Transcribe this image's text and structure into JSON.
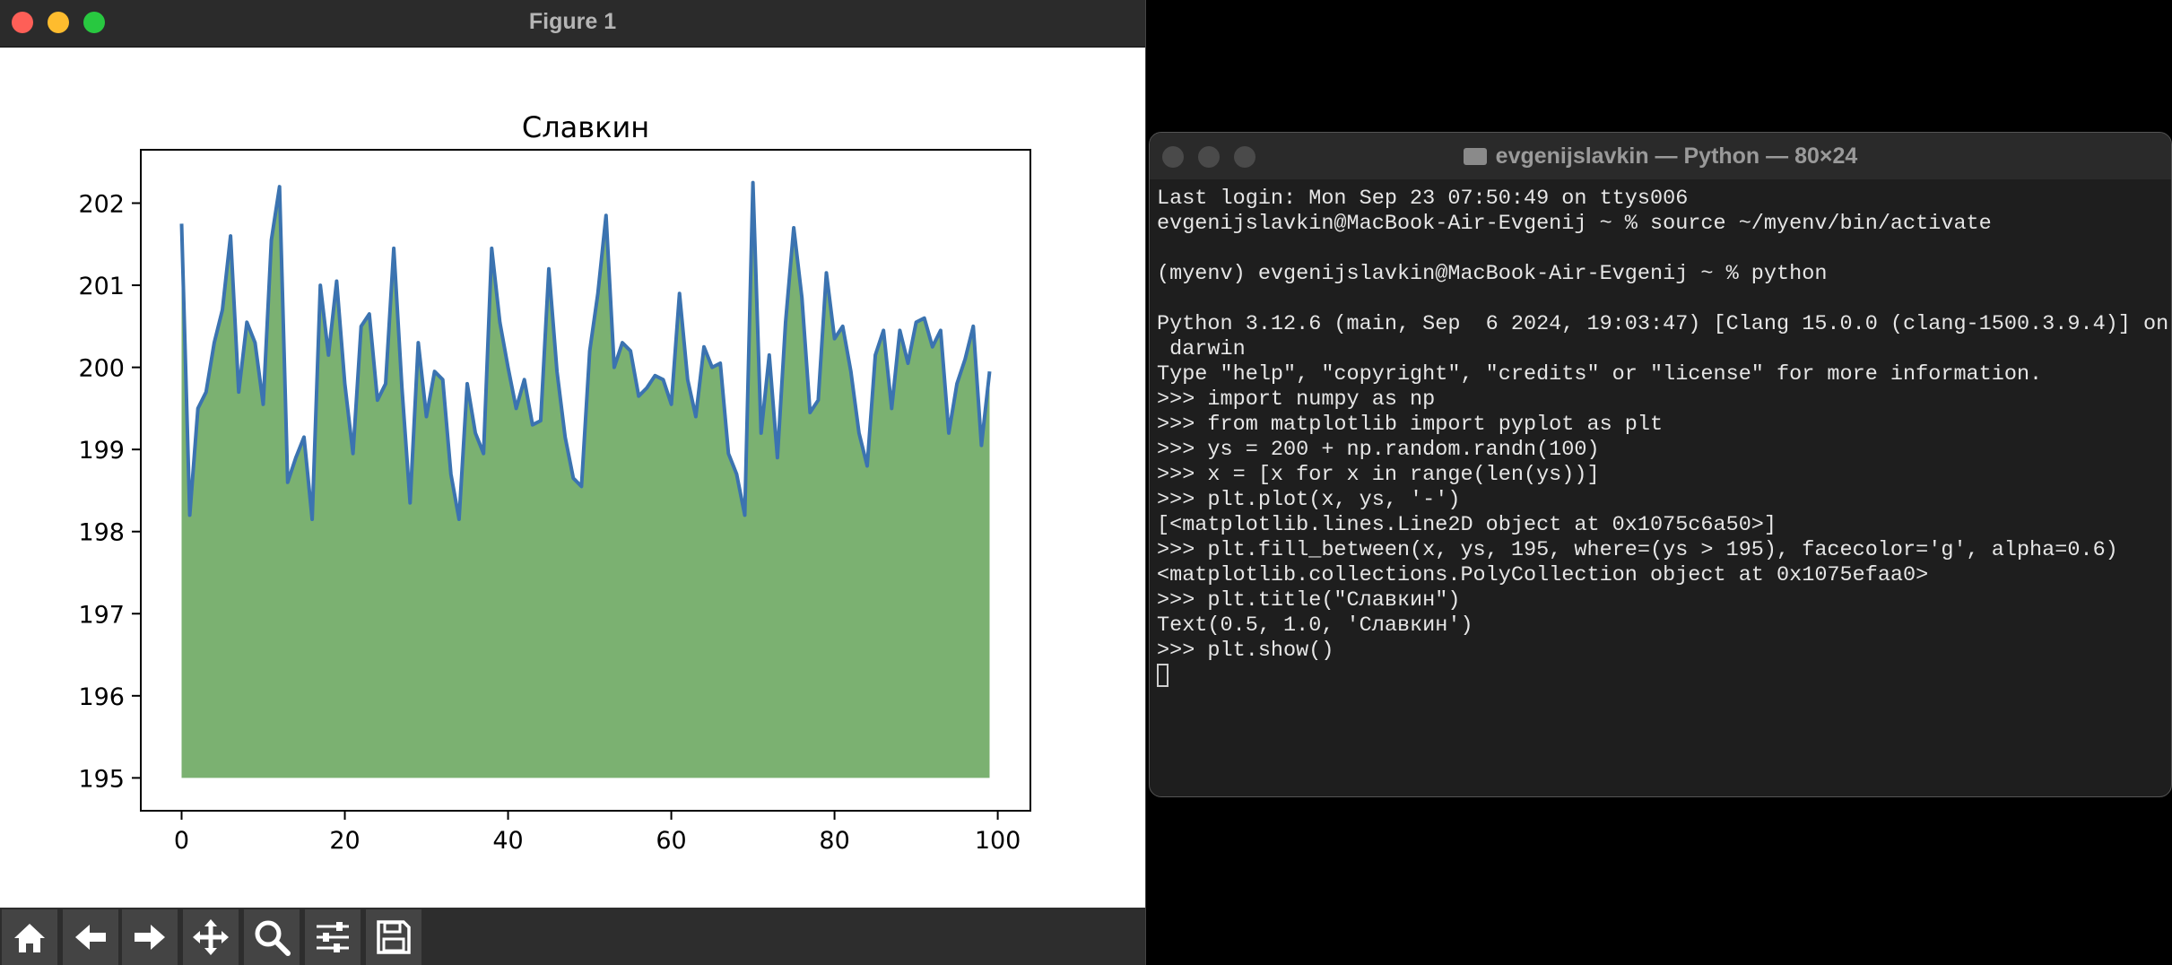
{
  "figure_window": {
    "title": "Figure 1",
    "toolbar": [
      {
        "name": "home-icon"
      },
      {
        "name": "back-arrow-icon"
      },
      {
        "name": "forward-arrow-icon"
      },
      {
        "name": "pan-icon"
      },
      {
        "name": "zoom-icon"
      },
      {
        "name": "configure-subplots-icon"
      },
      {
        "name": "save-icon"
      }
    ]
  },
  "chart_data": {
    "type": "area",
    "title": "Славкин",
    "xlabel": "",
    "ylabel": "",
    "xlim": [
      -5,
      104
    ],
    "ylim": [
      194.6,
      202.65
    ],
    "xticks": [
      0,
      20,
      40,
      60,
      80,
      100
    ],
    "yticks": [
      195,
      196,
      197,
      198,
      199,
      200,
      201,
      202
    ],
    "fill_base": 195,
    "line_color": "#3b73b0",
    "fill_color": "#7bb171",
    "grid": false,
    "x": [
      0,
      1,
      2,
      3,
      4,
      5,
      6,
      7,
      8,
      9,
      10,
      11,
      12,
      13,
      14,
      15,
      16,
      17,
      18,
      19,
      20,
      21,
      22,
      23,
      24,
      25,
      26,
      27,
      28,
      29,
      30,
      31,
      32,
      33,
      34,
      35,
      36,
      37,
      38,
      39,
      40,
      41,
      42,
      43,
      44,
      45,
      46,
      47,
      48,
      49,
      50,
      51,
      52,
      53,
      54,
      55,
      56,
      57,
      58,
      59,
      60,
      61,
      62,
      63,
      64,
      65,
      66,
      67,
      68,
      69,
      70,
      71,
      72,
      73,
      74,
      75,
      76,
      77,
      78,
      79,
      80,
      81,
      82,
      83,
      84,
      85,
      86,
      87,
      88,
      89,
      90,
      91,
      92,
      93,
      94,
      95,
      96,
      97,
      98,
      99
    ],
    "y": [
      201.75,
      198.2,
      199.5,
      199.7,
      200.3,
      200.7,
      201.6,
      199.7,
      200.55,
      200.3,
      199.55,
      201.55,
      202.2,
      198.6,
      198.9,
      199.15,
      198.15,
      201.0,
      200.15,
      201.05,
      199.8,
      198.95,
      200.5,
      200.65,
      199.6,
      199.8,
      201.45,
      199.75,
      198.35,
      200.3,
      199.4,
      199.95,
      199.85,
      198.7,
      198.15,
      199.8,
      199.2,
      198.95,
      201.45,
      200.55,
      200.0,
      199.5,
      199.85,
      199.3,
      199.35,
      201.2,
      199.95,
      199.15,
      198.65,
      198.55,
      200.2,
      200.9,
      201.85,
      200.0,
      200.3,
      200.2,
      199.65,
      199.75,
      199.9,
      199.85,
      199.55,
      200.9,
      199.85,
      199.4,
      200.25,
      200.0,
      200.05,
      198.95,
      198.7,
      198.2,
      202.25,
      199.2,
      200.15,
      198.9,
      200.55,
      201.7,
      200.85,
      199.45,
      199.6,
      201.15,
      200.35,
      200.5,
      199.95,
      199.2,
      198.8,
      200.15,
      200.45,
      199.5,
      200.45,
      200.05,
      200.55,
      200.6,
      200.25,
      200.45,
      199.2,
      199.8,
      200.1,
      200.5,
      199.05,
      199.95
    ]
  },
  "terminal": {
    "title": "evgenijslavkin — Python — 80×24",
    "lines": [
      "Last login: Mon Sep 23 07:50:49 on ttys006",
      "evgenijslavkin@MacBook-Air-Evgenij ~ % source ~/myenv/bin/activate",
      "",
      "(myenv) evgenijslavkin@MacBook-Air-Evgenij ~ % python",
      "",
      "Python 3.12.6 (main, Sep  6 2024, 19:03:47) [Clang 15.0.0 (clang-1500.3.9.4)] on",
      " darwin",
      "Type \"help\", \"copyright\", \"credits\" or \"license\" for more information.",
      ">>> import numpy as np",
      ">>> from matplotlib import pyplot as plt",
      ">>> ys = 200 + np.random.randn(100)",
      ">>> x = [x for x in range(len(ys))]",
      ">>> plt.plot(x, ys, '-')",
      "[<matplotlib.lines.Line2D object at 0x1075c6a50>]",
      ">>> plt.fill_between(x, ys, 195, where=(ys > 195), facecolor='g', alpha=0.6)",
      "<matplotlib.collections.PolyCollection object at 0x1075efaa0>",
      ">>> plt.title(\"Славкин\")",
      "Text(0.5, 1.0, 'Славкин')",
      ">>> plt.show()"
    ]
  }
}
